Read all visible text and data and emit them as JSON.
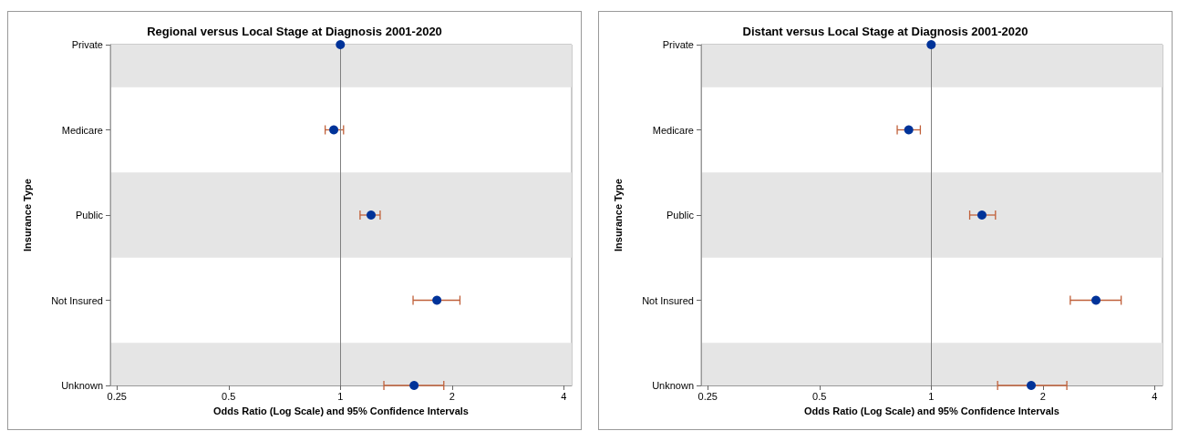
{
  "chart_data": [
    {
      "type": "scatter",
      "title": "Regional versus Local Stage at Diagnosis 2001-2020",
      "xlabel": "Odds Ratio (Log Scale) and 95% Confidence Intervals",
      "ylabel": "Insurance Type",
      "orientation": "horizontal",
      "log": "x",
      "categories": [
        "Private",
        "Medicare",
        "Public",
        "Not Insured",
        "Unknown"
      ],
      "series": [
        {
          "color": "#003399",
          "values": [
            1,
            0.96,
            1.21,
            1.82,
            1.58
          ],
          "errors": [
            null,
            [
              0.91,
              1.02
            ],
            [
              1.13,
              1.28
            ],
            [
              1.57,
              2.1
            ],
            [
              1.31,
              1.9
            ]
          ]
        }
      ],
      "xlim": [
        0.24,
        4.2
      ],
      "xticks": [
        0.25,
        0.5,
        1,
        2,
        4
      ],
      "marker": "circle",
      "grid": false,
      "ref_lines": [
        {
          "axis": "x",
          "value": 1,
          "color": "#808080"
        }
      ],
      "bands": [
        {
          "axis": "y",
          "from": "Private",
          "to": "Private",
          "color": "#e5e5e5"
        },
        {
          "axis": "y",
          "from": "Public",
          "to": "Public",
          "color": "#e5e5e5"
        },
        {
          "axis": "y",
          "from": "Unknown",
          "to": "Unknown",
          "color": "#e5e5e5"
        }
      ]
    },
    {
      "type": "scatter",
      "title": "Distant versus Local Stage at Diagnosis 2001-2020",
      "xlabel": "Odds Ratio (Log Scale) and 95% Confidence Intervals",
      "ylabel": "Insurance Type",
      "orientation": "horizontal",
      "log": "x",
      "categories": [
        "Private",
        "Medicare",
        "Public",
        "Not Insured",
        "Unknown"
      ],
      "series": [
        {
          "color": "#003399",
          "values": [
            1,
            0.87,
            1.37,
            2.78,
            1.86
          ],
          "errors": [
            null,
            [
              0.81,
              0.935
            ],
            [
              1.27,
              1.49
            ],
            [
              2.37,
              3.25
            ],
            [
              1.51,
              2.32
            ]
          ]
        }
      ],
      "xlim": [
        0.24,
        4.2
      ],
      "xticks": [
        0.25,
        0.5,
        1,
        2,
        4
      ],
      "marker": "circle",
      "grid": false,
      "ref_lines": [
        {
          "axis": "x",
          "value": 1,
          "color": "#808080"
        }
      ],
      "bands": [
        {
          "axis": "y",
          "from": "Private",
          "to": "Private",
          "color": "#e5e5e5"
        },
        {
          "axis": "y",
          "from": "Public",
          "to": "Public",
          "color": "#e5e5e5"
        },
        {
          "axis": "y",
          "from": "Unknown",
          "to": "Unknown",
          "color": "#e5e5e5"
        }
      ]
    }
  ]
}
